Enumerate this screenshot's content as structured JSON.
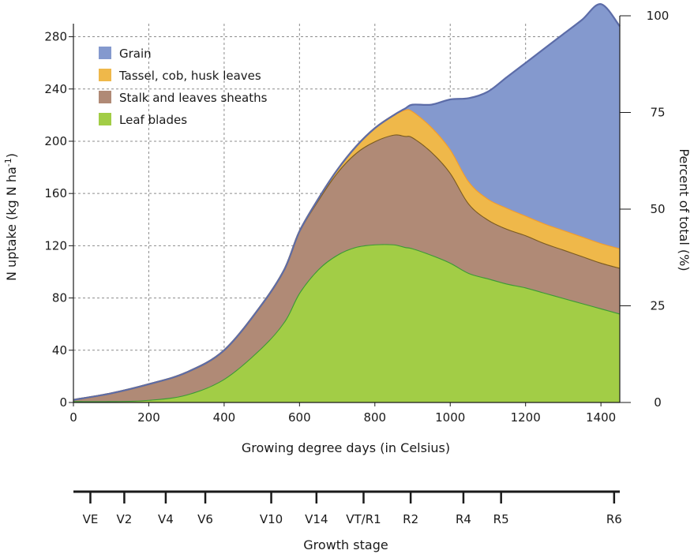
{
  "chart_data": {
    "type": "area",
    "stacked": true,
    "xlabel": "Growing degree days (in Celsius)",
    "ylabel": "N uptake (kg N ha",
    "ylabel_sup": "-1",
    "ylabel_suffix": ")",
    "y2label": "Percent of total (%)",
    "xlim": [
      0,
      1450
    ],
    "ylim": [
      0,
      290
    ],
    "y2lim": [
      0,
      100
    ],
    "x_ticks": [
      0,
      200,
      400,
      600,
      800,
      1000,
      1200,
      1400
    ],
    "y_ticks": [
      0,
      40,
      80,
      120,
      160,
      200,
      240,
      280
    ],
    "y2_ticks": [
      0,
      25,
      50,
      75,
      100
    ],
    "grid": true,
    "legend_position": "top-left",
    "x": [
      0,
      100,
      200,
      300,
      400,
      500,
      560,
      600,
      650,
      700,
      750,
      800,
      850,
      880,
      900,
      950,
      1000,
      1050,
      1100,
      1150,
      1200,
      1250,
      1300,
      1350,
      1400,
      1450
    ],
    "series": [
      {
        "name": "Leaf blades",
        "color": "#a2cd46",
        "line_color": "#3a9a35",
        "values": [
          1,
          1,
          2,
          6,
          18,
          42,
          62,
          84,
          102,
          113,
          119,
          121,
          121,
          119,
          118,
          113,
          107,
          99,
          95,
          91,
          88,
          84,
          80,
          76,
          72,
          68
        ]
      },
      {
        "name": "Stalk and leaves sheaths",
        "color": "#b08a76",
        "line_color": "#7a5a20",
        "values": [
          1,
          6,
          12,
          17,
          22,
          33,
          40,
          47,
          53,
          63,
          72,
          79,
          84,
          85,
          85,
          79,
          69,
          53,
          45,
          42,
          40,
          38,
          37,
          36,
          35,
          35
        ]
      },
      {
        "name": "Tassel, cob, husk leaves",
        "color": "#efb84a",
        "line_color": "#f59c2a",
        "values": [
          0,
          0,
          0,
          0,
          0,
          0,
          0,
          0,
          1,
          2,
          5,
          10,
          15,
          20,
          20,
          19,
          18,
          17,
          16,
          16,
          15,
          15,
          15,
          15,
          15,
          15
        ]
      },
      {
        "name": "Grain",
        "color": "#8499ce",
        "line_color": "#5c6ca8",
        "values": [
          0,
          0,
          0,
          0,
          0,
          0,
          0,
          0,
          0,
          0,
          0,
          0,
          0,
          1,
          5,
          17,
          38,
          64,
          82,
          100,
          117,
          134,
          150,
          166,
          183,
          170
        ]
      }
    ],
    "legend_order": [
      "Grain",
      "Tassel, cob, husk leaves",
      "Stalk and leaves sheaths",
      "Leaf blades"
    ],
    "growth_stage_axis": {
      "title": "Growth stage",
      "stages": [
        {
          "label": "VE",
          "gdd": 45
        },
        {
          "label": "V2",
          "gdd": 135
        },
        {
          "label": "V4",
          "gdd": 245
        },
        {
          "label": "V6",
          "gdd": 350
        },
        {
          "label": "V10",
          "gdd": 525
        },
        {
          "label": "V14",
          "gdd": 645
        },
        {
          "label": "VT/R1",
          "gdd": 770
        },
        {
          "label": "R2",
          "gdd": 895
        },
        {
          "label": "R4",
          "gdd": 1035
        },
        {
          "label": "R5",
          "gdd": 1135
        },
        {
          "label": "R6",
          "gdd": 1435
        }
      ]
    }
  }
}
